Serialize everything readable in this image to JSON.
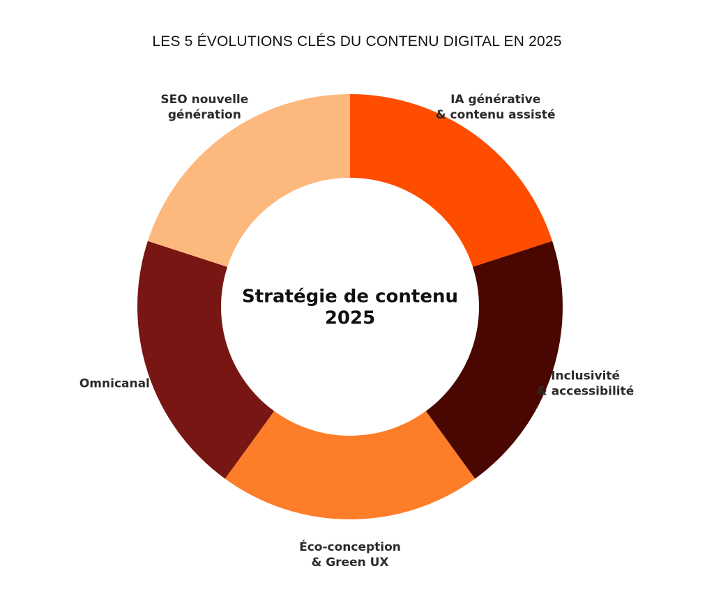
{
  "chart_data": {
    "type": "pie",
    "title": "LES 5 ÉVOLUTIONS CLÉS DU CONTENU DIGITAL EN 2025",
    "center_label": [
      "Stratégie de contenu",
      "2025"
    ],
    "categories": [
      "IA générative & contenu assisté",
      "Inclusivité & accessibilité",
      "Éco-conception & Green UX",
      "Omnicanal",
      "SEO nouvelle génération"
    ],
    "values": [
      20,
      20,
      20,
      20,
      20
    ],
    "slices": [
      {
        "label_lines": [
          "IA générative",
          "& contenu assisté"
        ],
        "value": 20,
        "color": "#ff4d00"
      },
      {
        "label_lines": [
          "Inclusivité",
          "& accessibilité"
        ],
        "value": 20,
        "color": "#4a0702"
      },
      {
        "label_lines": [
          "Éco-conception",
          "& Green UX"
        ],
        "value": 20,
        "color": "#fd7d29"
      },
      {
        "label_lines": [
          "Omnicanal"
        ],
        "value": 20,
        "color": "#771612"
      },
      {
        "label_lines": [
          "SEO nouvelle",
          "génération"
        ],
        "value": 20,
        "color": "#fdb87e"
      }
    ],
    "start_angle_deg": 90,
    "direction": "clockwise",
    "legend": "none",
    "grid": false
  }
}
